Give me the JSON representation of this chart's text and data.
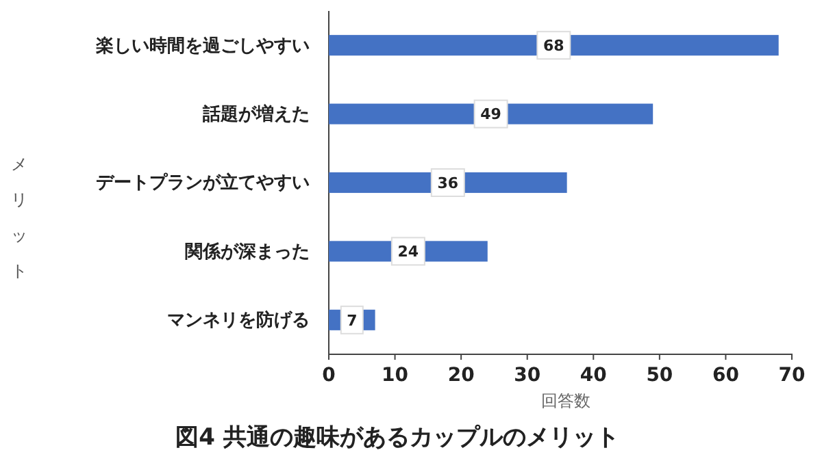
{
  "chart_data": {
    "type": "bar",
    "orientation": "horizontal",
    "title": "図4 共通の趣味があるカップルのメリット",
    "xlabel": "回答数",
    "ylabel": "メリット",
    "categories": [
      "楽しい時間を過ごしやすい",
      "話題が増えた",
      "デートプランが立てやすい",
      "関係が深まった",
      "マンネリを防げる"
    ],
    "values": [
      68,
      49,
      36,
      24,
      7
    ],
    "color": "#4472c4",
    "data_labels": true,
    "xlim": [
      0,
      70
    ],
    "xticks": [
      0,
      10,
      20,
      30,
      40,
      50,
      60,
      70
    ],
    "grid": false
  }
}
